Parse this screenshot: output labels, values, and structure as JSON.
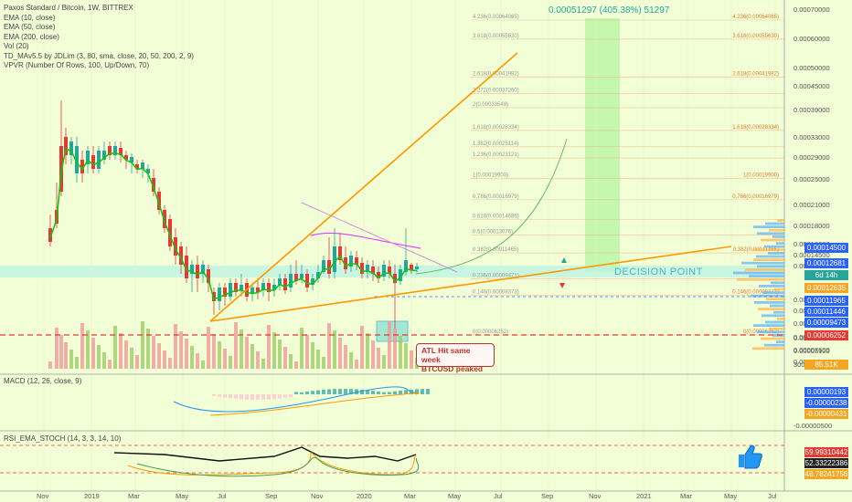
{
  "header": {
    "title": "Paxos Standard / Bitcoin, 1W, BITTREX",
    "indicators": [
      "EMA (10, close)",
      "EMA (50, close)",
      "EMA (200, close)",
      "Vol (20)",
      "TD_MAv5.5 by JDLim (3, 80, sma, close, 20, 50, 200, 2, 9)",
      "VPVR (Number Of Rows, 100, Up/Down, 70)"
    ]
  },
  "annotations": {
    "projection": "0.00051297 (405.38%) 51297",
    "decision": "DECISION POINT",
    "callout_line1": "ATL Hit same week",
    "callout_line2": "BTCUSD peaked"
  },
  "fib_left": [
    "4.236(0.00064065)",
    "3.618(0.00055630)",
    "2.618(0.00041982)",
    "2.272(0.00037260)",
    "2(0.00033548)",
    "1.618(0.00028334)",
    "1.382(0.00025114)",
    "1.236(0.00023121)",
    "1(0.00019900)",
    "0.786(0.00016979)",
    "0.618(0.00014686)",
    "0.5(0.00013076)",
    "0.382(0.00011465)",
    "0.236(0.00009471)",
    "0.146(0.00008373)",
    "0(0.00006252)"
  ],
  "fib_right": [
    "4.236(0.00064065)",
    "3.618(0.00055630)",
    "2.618(0.00041982)",
    "1.618(0.00028334)",
    "1(0.00019900)",
    "0.786(0.00016979)",
    "0.382(0.00011465)",
    "0.146(0.00008373)",
    "0(0.00006252)"
  ],
  "price_axis": [
    "0.00070000",
    "0.00060000",
    "0.00050000",
    "0.00045000",
    "0.00039000",
    "0.00033000",
    "0.00029000",
    "0.00025000",
    "0.00021000",
    "0.00018000",
    "0.00016000",
    "0.00014500",
    "0.00012681",
    "0.00011965",
    "0.00011446",
    "0.00009473",
    "0.00008900",
    "0.00007600",
    "0.00006252",
    "0.00005100",
    "0.00004300",
    "300"
  ],
  "price_tags": [
    {
      "text": "0.00014500",
      "color": "#2962ff"
    },
    {
      "text": "0.00012681",
      "color": "#2962ff"
    },
    {
      "text": "6d 14h",
      "color": "#26a69a"
    },
    {
      "text": "0.00012635",
      "color": "#f5a623"
    },
    {
      "text": "0.00011965",
      "color": "#2962ff"
    },
    {
      "text": "0.00011446",
      "color": "#2962ff"
    },
    {
      "text": "0.00009473",
      "color": "#2962ff"
    },
    {
      "text": "0.00006252",
      "color": "#e53935"
    },
    {
      "text": "85.51K",
      "color": "#f5a623"
    }
  ],
  "macd": {
    "legend": "MACD (12, 26, close, 9)",
    "tags": [
      {
        "text": "0.00000193",
        "color": "#2962ff"
      },
      {
        "text": "-0.00000238",
        "color": "#2962ff"
      },
      {
        "text": "-0.00000431",
        "color": "#f5a623"
      }
    ],
    "axis": [
      "-0.00000500"
    ]
  },
  "rsi": {
    "legend": "RSI_EMA_STOCH (14, 3, 3, 14, 10)",
    "tags": [
      {
        "text": "59.99310442",
        "color": "#e53935"
      },
      {
        "text": "52.33222386",
        "color": "#222222"
      },
      {
        "text": "48.78241756",
        "color": "#f5a623"
      }
    ]
  },
  "time_axis": [
    "Nov",
    "2019",
    "Mar",
    "May",
    "Jul",
    "Sep",
    "Nov",
    "2020",
    "Mar",
    "May",
    "Jul",
    "Sep",
    "Nov",
    "2021",
    "Mar",
    "May",
    "Jul"
  ],
  "chart_data": {
    "type": "line",
    "title": "Paxos Standard / Bitcoin, 1W, BITTREX",
    "x": [
      "2018-10",
      "2018-12",
      "2019-02",
      "2019-04",
      "2019-06",
      "2019-08",
      "2019-10",
      "2019-12",
      "2020-02",
      "2020-03"
    ],
    "series": [
      {
        "name": "EMA (10, close)",
        "values": [
          0.0002,
          0.00027,
          0.00028,
          0.00022,
          0.00011,
          0.0001,
          0.00012,
          0.00014,
          0.00012,
          0.00012681
        ]
      }
    ],
    "levels": {
      "atl": 6.252e-05,
      "target": 0.00051297,
      "gain_pct": 405.38
    },
    "colors": {
      "up": "#26a69a",
      "down": "#e53935",
      "ema10": "#13c413",
      "trend": "#ff9800",
      "ema_ma": "#e040fb"
    }
  }
}
